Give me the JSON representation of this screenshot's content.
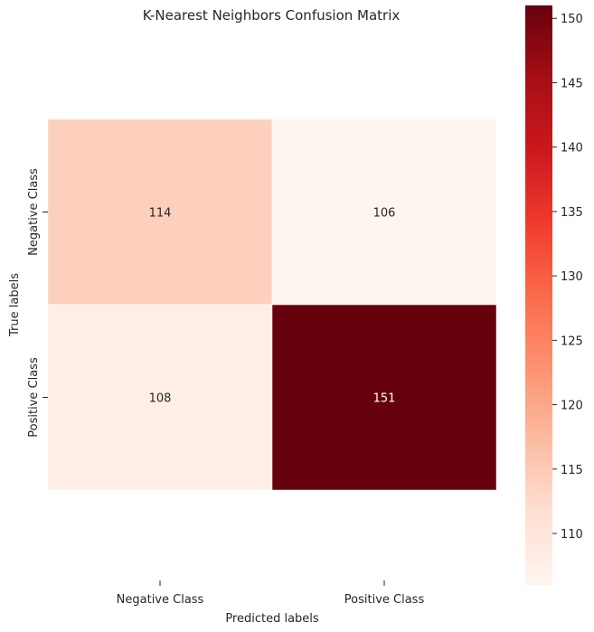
{
  "chart_data": {
    "type": "heatmap",
    "title": "K-Nearest Neighbors Confusion Matrix",
    "xlabel": "Predicted labels",
    "ylabel": "True labels",
    "x_categories": [
      "Negative Class",
      "Positive Class"
    ],
    "y_categories": [
      "Negative Class",
      "Positive Class"
    ],
    "values": [
      [
        114,
        106
      ],
      [
        108,
        151
      ]
    ],
    "colormap": "Reds",
    "colorbar": {
      "min": 106,
      "max": 151,
      "ticks": [
        "110",
        "115",
        "120",
        "125",
        "130",
        "135",
        "140",
        "145",
        "150"
      ]
    }
  }
}
